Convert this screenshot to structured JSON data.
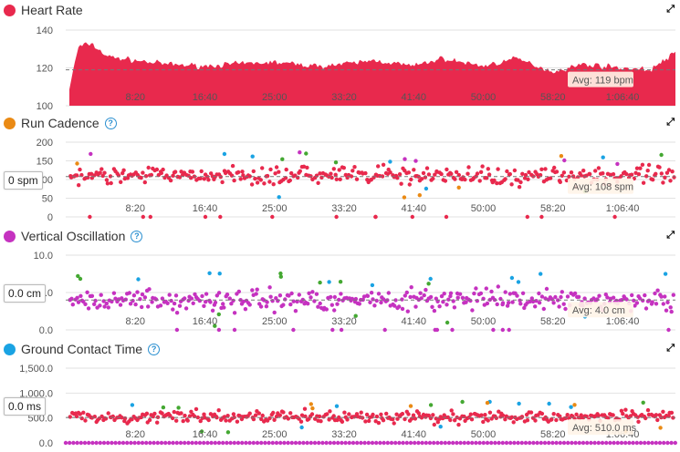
{
  "panels": [
    {
      "title": "Heart Rate",
      "color": "#e8294d",
      "help": false
    },
    {
      "title": "Run Cadence",
      "color": "#ea8a14",
      "help": true,
      "current": "0 spm"
    },
    {
      "title": "Vertical Oscillation",
      "color": "#c532c0",
      "help": true,
      "current": "0.0 cm"
    },
    {
      "title": "Ground Contact Time",
      "color": "#1aa3e3",
      "help": true,
      "current": "0.0 ms"
    }
  ],
  "icons": {
    "expand": "expand-icon",
    "help": "help-icon"
  },
  "chart_data": [
    {
      "type": "area",
      "title": "Heart Rate",
      "x_ticks": [
        "8:20",
        "16:40",
        "25:00",
        "33:20",
        "41:40",
        "50:00",
        "58:20",
        "1:06:40"
      ],
      "y_ticks": [
        "100",
        "120",
        "140"
      ],
      "ylim": [
        100,
        140
      ],
      "average_value": 119,
      "average_label": "Avg: 119 bpm",
      "series": [
        {
          "name": "Heart Rate",
          "values_x_min": [
            0,
            1.5,
            3,
            5,
            8.3,
            12,
            16.7,
            20,
            25,
            30,
            33.3,
            37,
            41.7,
            45,
            50,
            54,
            58.3,
            62,
            66.7,
            70,
            73
          ],
          "values": [
            100,
            131,
            133,
            126,
            124,
            122,
            121,
            122,
            123,
            121,
            122,
            124,
            121,
            125,
            121,
            125,
            118,
            122,
            120,
            119,
            128
          ]
        }
      ]
    },
    {
      "type": "scatter",
      "title": "Run Cadence",
      "x_ticks": [
        "8:20",
        "16:40",
        "25:00",
        "33:20",
        "41:40",
        "50:00",
        "58:20",
        "1:06:40"
      ],
      "y_ticks": [
        "0",
        "50",
        "100",
        "150",
        "200"
      ],
      "ylim": [
        0,
        200
      ],
      "average_value": 108,
      "average_label": "Avg: 108 spm",
      "series": [
        {
          "name": "Run Cadence",
          "mean": 110,
          "spread": 35
        }
      ]
    },
    {
      "type": "scatter",
      "title": "Vertical Oscillation",
      "x_ticks": [
        "8:20",
        "16:40",
        "25:00",
        "33:20",
        "41:40",
        "50:00",
        "58:20",
        "1:06:40"
      ],
      "y_ticks": [
        "0.0",
        "5.0",
        "10.0"
      ],
      "ylim": [
        0,
        10
      ],
      "average_value": 4.0,
      "average_label": "Avg: 4.0 cm",
      "series": [
        {
          "name": "Vertical Oscillation",
          "mean": 4.0,
          "spread": 2.0
        }
      ]
    },
    {
      "type": "scatter",
      "title": "Ground Contact Time",
      "x_ticks": [
        "8:20",
        "16:40",
        "25:00",
        "33:20",
        "41:40",
        "50:00",
        "58:20",
        "1:06:40"
      ],
      "y_ticks": [
        "0.0",
        "500.0",
        "1,000.0",
        "1,500.0"
      ],
      "ylim": [
        0,
        1500
      ],
      "average_value": 510,
      "average_label": "Avg: 510.0 ms",
      "series": [
        {
          "name": "Ground Contact Time",
          "mean": 520,
          "spread": 180
        }
      ]
    }
  ]
}
